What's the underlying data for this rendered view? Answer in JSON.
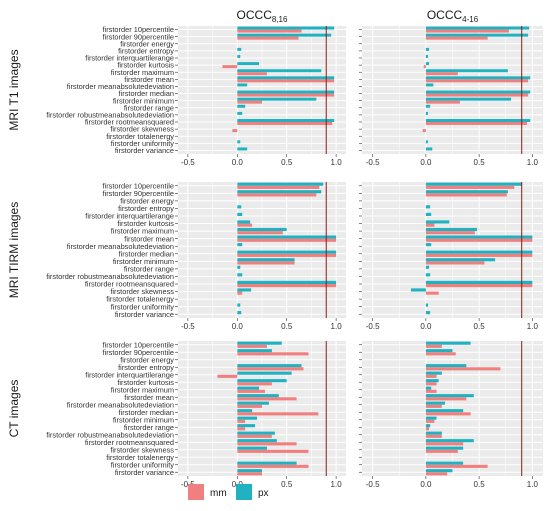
{
  "columns": [
    {
      "title": "OCCC",
      "subscript": "8,16"
    },
    {
      "title": "OCCC",
      "subscript": "4-16"
    }
  ],
  "rows": [
    "MRI T1 images",
    "MRI TIRM images",
    "CT images"
  ],
  "features": [
    "firstorder 10percentile",
    "firstorder 90percentile",
    "firstorder energy",
    "firstorder entropy",
    "firstorder interquartilerange",
    "firstorder kurtosis",
    "firstorder maximum",
    "firstorder mean",
    "firstorder meanabsolutedeviation",
    "firstorder median",
    "firstorder minimum",
    "firstorder range",
    "firstorder robustmeanabsolutedeviation",
    "firstorder rootmeansquared",
    "firstorder skewness",
    "firstorder totalenergy",
    "firstorder uniformity",
    "firstorder variance"
  ],
  "x_ticks": [
    "-0.5",
    "0.0",
    "0.5",
    "1.0"
  ],
  "colors": {
    "mm": "#f08080",
    "px": "#20b2c0",
    "threshold": "#8b1a1a",
    "panel": "#ebebeb",
    "grid": "#ffffff"
  },
  "legend": {
    "items": [
      {
        "key": "mm",
        "label": "mm"
      },
      {
        "key": "px",
        "label": "px"
      }
    ]
  },
  "chart_data": {
    "type": "bar",
    "orientation": "horizontal",
    "xlim": [
      -0.6,
      1.1
    ],
    "threshold": 0.9,
    "series_names": [
      "mm",
      "px"
    ],
    "panels": [
      {
        "row": "MRI T1 images",
        "column": "8,16",
        "mm": [
          0.65,
          0.62,
          0,
          0,
          0,
          -0.15,
          0.3,
          0.98,
          0,
          0.98,
          0.25,
          0,
          0,
          0.96,
          -0.05,
          0,
          0,
          0
        ],
        "px": [
          0.98,
          0.95,
          0,
          0.04,
          0.03,
          0.22,
          0.85,
          0.98,
          0.1,
          0.98,
          0.8,
          0.08,
          0.05,
          0.98,
          0,
          0,
          0.03,
          0.1
        ]
      },
      {
        "row": "MRI T1 images",
        "column": "4-16",
        "mm": [
          0.78,
          0.58,
          0,
          0,
          0,
          -0.02,
          0.3,
          0.96,
          0,
          0.96,
          0.32,
          0,
          0,
          0.95,
          -0.03,
          0,
          0,
          0
        ],
        "px": [
          0.97,
          0.96,
          0,
          0.03,
          0.02,
          0.03,
          0.77,
          0.98,
          0.07,
          0.98,
          0.8,
          0.04,
          0.02,
          0.98,
          0,
          0,
          0.02,
          0.06
        ]
      },
      {
        "row": "MRI TIRM images",
        "column": "8,16",
        "mm": [
          0.83,
          0.8,
          0,
          0,
          0,
          0.15,
          0.46,
          1.0,
          0,
          1.0,
          0.58,
          0,
          0,
          1.0,
          0.05,
          0,
          0,
          0
        ],
        "px": [
          0.87,
          0.85,
          0,
          0.04,
          0.05,
          0.13,
          0.5,
          1.0,
          0.05,
          1.0,
          0.58,
          0.03,
          0.05,
          1.0,
          0.14,
          0,
          0.03,
          0.04
        ]
      },
      {
        "row": "MRI TIRM images",
        "column": "4-16",
        "mm": [
          0.83,
          0.76,
          0,
          0,
          0,
          0.08,
          0.46,
          1.0,
          0,
          1.0,
          0.55,
          0,
          0,
          1.0,
          0.12,
          0,
          0,
          0
        ],
        "px": [
          0.9,
          0.77,
          0,
          0.04,
          0.05,
          0.22,
          0.48,
          1.0,
          0.05,
          1.0,
          0.65,
          0.03,
          0.04,
          1.0,
          -0.14,
          0,
          0.02,
          0.04
        ]
      },
      {
        "row": "CT images",
        "column": "8,16",
        "mm": [
          0.3,
          0.72,
          0,
          0.67,
          -0.2,
          0.35,
          0.28,
          0.6,
          0.25,
          0.82,
          0.08,
          0.08,
          0.35,
          0.6,
          0.72,
          0,
          0.72,
          0.25
        ],
        "px": [
          0.45,
          0.35,
          0,
          0.65,
          0.55,
          0.5,
          0.22,
          0.42,
          0.32,
          0.15,
          0.2,
          0.18,
          0.38,
          0.4,
          0.3,
          0,
          0.6,
          0.25
        ]
      },
      {
        "row": "CT images",
        "column": "4-16",
        "mm": [
          0.15,
          0.28,
          0,
          0.7,
          0.1,
          0.1,
          0.1,
          0.38,
          0.15,
          0.42,
          0.08,
          0.03,
          0.15,
          0.35,
          0.3,
          0,
          0.58,
          0.2
        ],
        "px": [
          0.42,
          0.25,
          0,
          0.38,
          0.15,
          0.12,
          0.05,
          0.45,
          0.18,
          0.35,
          0.1,
          0.04,
          0.15,
          0.45,
          0.35,
          0,
          0.35,
          0.25
        ]
      }
    ]
  }
}
